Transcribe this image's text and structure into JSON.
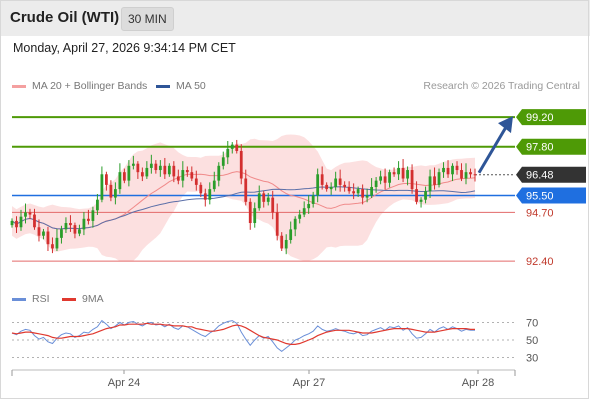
{
  "header": {
    "title": "Crude Oil (WTI)",
    "timeframe": "30 MIN"
  },
  "datetime": "Monday, April 27, 2026 9:34:14 PM CET",
  "legend": {
    "bollinger": "MA 20 + Bollinger Bands",
    "ma50": "MA 50",
    "copyright": "Research © 2026 Trading Central"
  },
  "rsi_legend": {
    "rsi": "RSI",
    "ma9": "9MA"
  },
  "colors": {
    "green": "#4e9a06",
    "blue": "#1f6fe0",
    "red": "#e03030",
    "dark": "#333333",
    "band": "#fbd6d6",
    "ma50": "#5b6fa8",
    "rsi": "#6a8fd8",
    "rsi_ma": "#e0392f"
  },
  "chart_data": [
    {
      "type": "candlestick",
      "x_ticks": [
        "Apr 24",
        "Apr 27",
        "Apr 28"
      ],
      "ylim": [
        91.7,
        100.1
      ],
      "levels": [
        {
          "label": "99.20",
          "value": 99.2,
          "kind": "resistance"
        },
        {
          "label": "97.80",
          "value": 97.8,
          "kind": "resistance"
        },
        {
          "label": "96.48",
          "value": 96.48,
          "kind": "last-price"
        },
        {
          "label": "95.50",
          "value": 95.5,
          "kind": "pivot"
        },
        {
          "label": "94.70",
          "value": 94.7,
          "kind": "support"
        },
        {
          "label": "92.40",
          "value": 92.4,
          "kind": "support"
        }
      ],
      "arrow": {
        "from": 96.48,
        "to": 99.2
      },
      "close": [
        94.3,
        94.0,
        94.5,
        94.7,
        94.6,
        94.0,
        93.6,
        93.8,
        93.2,
        93.0,
        93.5,
        93.9,
        94.2,
        94.1,
        93.7,
        93.9,
        94.4,
        94.3,
        94.8,
        95.3,
        96.5,
        96.0,
        95.4,
        95.8,
        96.6,
        96.2,
        96.9,
        97.0,
        96.6,
        96.4,
        96.8,
        97.0,
        96.7,
        96.9,
        96.5,
        96.9,
        96.4,
        96.2,
        96.7,
        96.6,
        96.3,
        96.0,
        95.6,
        95.3,
        95.8,
        96.2,
        96.9,
        97.3,
        97.7,
        97.9,
        97.6,
        96.3,
        95.2,
        94.2,
        94.9,
        95.6,
        95.2,
        95.4,
        94.7,
        93.6,
        93.0,
        93.4,
        93.9,
        94.4,
        94.6,
        94.9,
        95.1,
        95.5,
        96.5,
        96.0,
        95.8,
        95.9,
        96.3,
        96.0,
        95.9,
        95.7,
        95.6,
        95.8,
        95.4,
        95.5,
        95.9,
        96.2,
        96.4,
        96.1,
        96.6,
        96.5,
        96.8,
        96.3,
        96.7,
        95.8,
        95.2,
        95.3,
        95.7,
        96.4,
        96.0,
        96.6,
        96.8,
        96.5,
        96.9,
        96.7,
        96.3,
        96.6,
        96.5,
        96.48
      ]
    },
    {
      "type": "line",
      "name": "RSI",
      "yticks": [
        70,
        50,
        30
      ],
      "ylim": [
        25,
        75
      ],
      "rsi": [
        58,
        56,
        60,
        62,
        61,
        55,
        51,
        53,
        48,
        46,
        52,
        56,
        58,
        57,
        53,
        55,
        59,
        58,
        62,
        65,
        72,
        68,
        63,
        66,
        70,
        67,
        70,
        71,
        68,
        66,
        69,
        70,
        67,
        68,
        65,
        68,
        64,
        62,
        66,
        65,
        62,
        59,
        56,
        54,
        58,
        61,
        66,
        69,
        71,
        72,
        69,
        59,
        51,
        44,
        50,
        55,
        52,
        54,
        48,
        41,
        37,
        41,
        45,
        50,
        52,
        55,
        57,
        60,
        66,
        62,
        60,
        61,
        63,
        61,
        60,
        58,
        57,
        59,
        55,
        56,
        60,
        62,
        64,
        61,
        65,
        64,
        66,
        61,
        64,
        57,
        52,
        53,
        57,
        62,
        59,
        63,
        65,
        62,
        65,
        63,
        60,
        62,
        61,
        61
      ],
      "ma9": [
        58,
        57,
        58,
        59,
        59,
        58,
        57,
        56,
        55,
        53,
        52,
        52,
        53,
        54,
        54,
        54,
        55,
        56,
        57,
        59,
        61,
        63,
        64,
        65,
        67,
        67,
        68,
        68,
        68,
        68,
        69,
        68,
        68,
        68,
        67,
        67,
        66,
        66,
        66,
        65,
        65,
        63,
        62,
        61,
        60,
        60,
        61,
        62,
        64,
        66,
        67,
        66,
        64,
        61,
        58,
        55,
        53,
        52,
        51,
        50,
        48,
        46,
        45,
        45,
        46,
        48,
        50,
        52,
        55,
        57,
        59,
        60,
        61,
        61,
        61,
        61,
        60,
        59,
        58,
        58,
        58,
        59,
        60,
        61,
        62,
        63,
        63,
        63,
        63,
        62,
        61,
        60,
        59,
        59,
        59,
        60,
        61,
        62,
        63,
        63,
        63,
        63,
        62,
        62
      ]
    }
  ]
}
